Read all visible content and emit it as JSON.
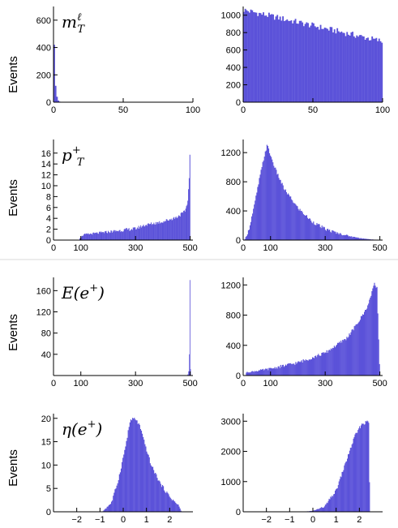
{
  "colors": {
    "histogram": "#5b52d9",
    "axes": "#000000"
  },
  "ylabel": "Events",
  "chart_data": [
    {
      "type": "bar",
      "id": "mT-reco",
      "title_tex": "m_T^ℓ",
      "title_parts": {
        "main": "m",
        "sub": "T",
        "sup": "ℓ"
      },
      "xlim": [
        0,
        100
      ],
      "ylim": [
        0,
        700
      ],
      "xticks": [
        0,
        50,
        100
      ],
      "yticks": [
        0,
        200,
        400,
        600
      ],
      "bins": [
        [
          0,
          1,
          420
        ],
        [
          1,
          2,
          120
        ],
        [
          2,
          3,
          40
        ],
        [
          3,
          4,
          12
        ],
        [
          4,
          5,
          4
        ]
      ]
    },
    {
      "type": "bar",
      "id": "mT-truth",
      "title_tex": "",
      "xlim": [
        0,
        100
      ],
      "ylim": [
        0,
        1100
      ],
      "xticks": [
        0,
        50,
        100
      ],
      "yticks": [
        0,
        200,
        400,
        600,
        800,
        1000
      ],
      "shape": {
        "kind": "falling",
        "start": 1060,
        "end": 700,
        "nbins": 100,
        "xmin": 0,
        "xmax": 100
      }
    },
    {
      "type": "bar",
      "id": "pT-reco",
      "title_tex": "p_T(e^+)",
      "title_parts": {
        "main": "p",
        "sub": "T",
        "rest": "(e",
        "sup": "+",
        "close": ")"
      },
      "xlim": [
        0,
        510
      ],
      "ylim": [
        0,
        18.5
      ],
      "xticks": [
        0,
        100,
        300,
        500
      ],
      "yticks": [
        0,
        2,
        4,
        6,
        8,
        10,
        12,
        14,
        16
      ],
      "points": [
        [
          95,
          0.3
        ],
        [
          110,
          1.0
        ],
        [
          200,
          1.5
        ],
        [
          300,
          2.1
        ],
        [
          330,
          2.7
        ],
        [
          400,
          3.4
        ],
        [
          450,
          4.2
        ],
        [
          480,
          5.2
        ],
        [
          490,
          6.8
        ],
        [
          495,
          10.0
        ],
        [
          498,
          14.0
        ],
        [
          500,
          18.0
        ]
      ],
      "range": [
        95,
        500
      ],
      "nbins": 160
    },
    {
      "type": "bar",
      "id": "pT-truth",
      "title_tex": "",
      "xlim": [
        0,
        510
      ],
      "ylim": [
        0,
        1380
      ],
      "xticks": [
        0,
        100,
        300,
        500
      ],
      "yticks": [
        0,
        400,
        800,
        1200
      ],
      "points": [
        [
          5,
          0
        ],
        [
          20,
          130
        ],
        [
          40,
          460
        ],
        [
          60,
          850
        ],
        [
          80,
          1200
        ],
        [
          88,
          1300
        ],
        [
          100,
          1160
        ],
        [
          120,
          950
        ],
        [
          150,
          700
        ],
        [
          200,
          440
        ],
        [
          250,
          260
        ],
        [
          300,
          150
        ],
        [
          350,
          90
        ],
        [
          400,
          45
        ],
        [
          450,
          15
        ],
        [
          500,
          0
        ]
      ],
      "range": [
        5,
        500
      ],
      "nbins": 160
    },
    {
      "type": "bar",
      "id": "E-reco",
      "title_tex": "E(e^+)",
      "title_parts": {
        "main": "E",
        "rest": "(e",
        "sup": "+",
        "close": ")"
      },
      "xlim": [
        0,
        510
      ],
      "ylim": [
        0,
        185
      ],
      "xticks": [
        0,
        100,
        300,
        500
      ],
      "yticks": [
        40,
        80,
        120,
        160
      ],
      "bins": [
        [
          490,
          493,
          2
        ],
        [
          493,
          496,
          8
        ],
        [
          496,
          498,
          40
        ],
        [
          498,
          500,
          180
        ],
        [
          500,
          502,
          12
        ]
      ]
    },
    {
      "type": "bar",
      "id": "E-truth",
      "title_tex": "",
      "xlim": [
        0,
        510
      ],
      "ylim": [
        0,
        1300
      ],
      "xticks": [
        0,
        100,
        300,
        500
      ],
      "yticks": [
        0,
        400,
        800,
        1200
      ],
      "points": [
        [
          10,
          40
        ],
        [
          100,
          90
        ],
        [
          200,
          170
        ],
        [
          300,
          300
        ],
        [
          380,
          500
        ],
        [
          420,
          700
        ],
        [
          450,
          880
        ],
        [
          470,
          1080
        ],
        [
          480,
          1240
        ],
        [
          490,
          1150
        ],
        [
          495,
          500
        ],
        [
          500,
          0
        ]
      ],
      "range": [
        10,
        500
      ],
      "nbins": 160
    },
    {
      "type": "bar",
      "id": "eta-reco",
      "title_tex": "η(e^+)",
      "title_parts": {
        "main": "η",
        "rest": "(e",
        "sup": "+",
        "close": ")"
      },
      "xlim": [
        -3,
        3
      ],
      "ylim": [
        0,
        21
      ],
      "xticks": [
        -2,
        -1,
        0,
        1,
        2
      ],
      "yticks": [
        0,
        5,
        10,
        15,
        20
      ],
      "points": [
        [
          -0.9,
          0
        ],
        [
          -0.5,
          2
        ],
        [
          -0.2,
          7
        ],
        [
          0.1,
          14
        ],
        [
          0.3,
          19.5
        ],
        [
          0.5,
          20
        ],
        [
          0.7,
          18.5
        ],
        [
          0.9,
          15
        ],
        [
          1.2,
          10
        ],
        [
          1.6,
          6
        ],
        [
          2.0,
          3.2
        ],
        [
          2.4,
          1.2
        ],
        [
          2.5,
          0
        ]
      ],
      "range": [
        -0.9,
        2.5
      ],
      "nbins": 90
    },
    {
      "type": "bar",
      "id": "eta-truth",
      "title_tex": "",
      "xlim": [
        -3,
        3
      ],
      "ylim": [
        0,
        3250
      ],
      "xticks": [
        -2,
        -1,
        0,
        1,
        2
      ],
      "yticks": [
        0,
        1000,
        2000,
        3000
      ],
      "points": [
        [
          -0.5,
          0
        ],
        [
          0,
          30
        ],
        [
          0.5,
          170
        ],
        [
          1.0,
          700
        ],
        [
          1.4,
          1600
        ],
        [
          1.8,
          2500
        ],
        [
          2.1,
          2900
        ],
        [
          2.4,
          3000
        ],
        [
          2.45,
          0
        ]
      ],
      "range": [
        -0.5,
        2.45
      ],
      "nbins": 90
    }
  ]
}
